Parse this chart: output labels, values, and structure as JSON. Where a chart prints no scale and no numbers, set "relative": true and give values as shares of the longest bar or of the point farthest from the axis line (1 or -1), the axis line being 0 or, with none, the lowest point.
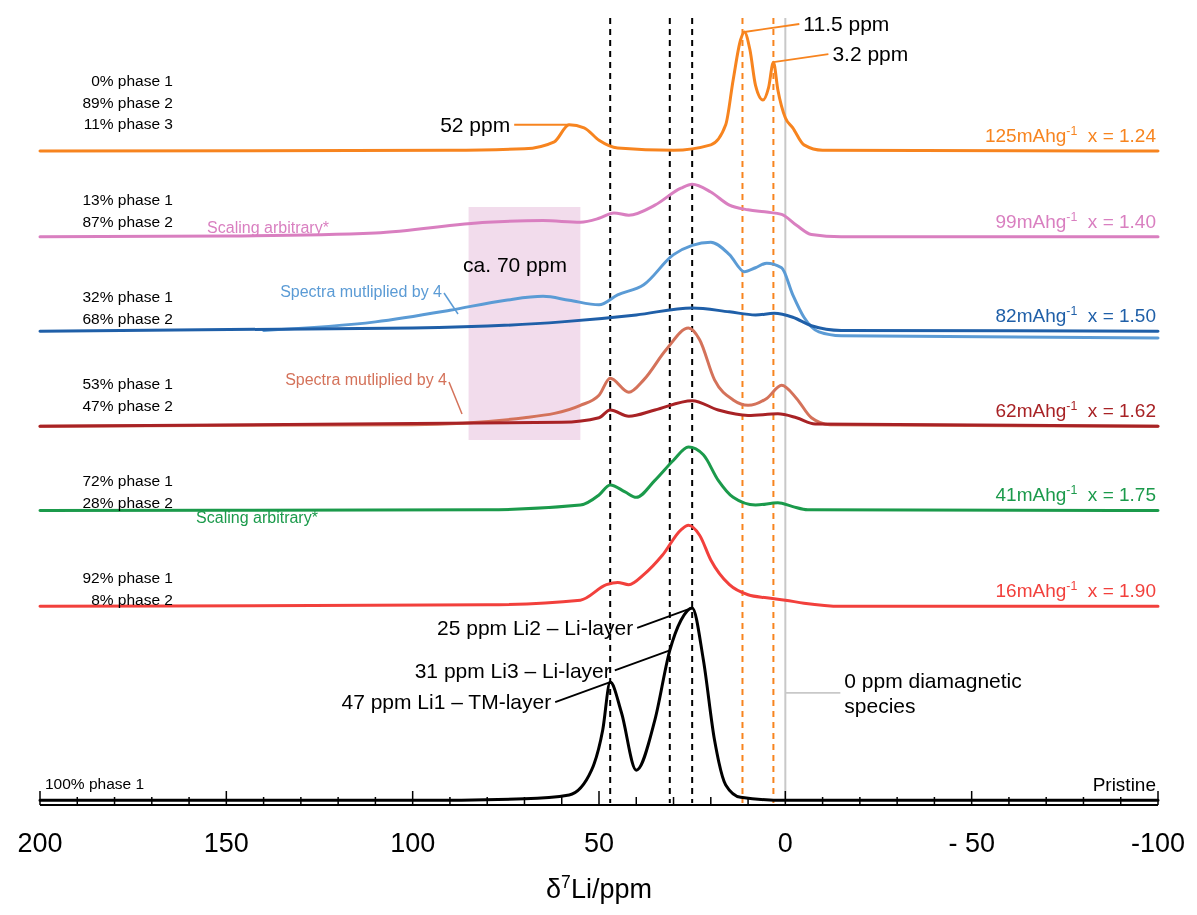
{
  "chart_data": {
    "type": "line",
    "relative": true,
    "xlim": [
      200,
      -100
    ],
    "xticks": [
      200,
      {
        "value": 190,
        "label": null
      },
      {
        "value": 180,
        "label": null
      },
      {
        "value": 170,
        "label": null
      },
      {
        "value": 160,
        "label": null
      },
      150,
      {
        "value": 140,
        "label": null
      },
      {
        "value": 130,
        "label": null
      },
      {
        "value": 120,
        "label": null
      },
      {
        "value": 110,
        "label": null
      },
      100,
      {
        "value": 90,
        "label": null
      },
      {
        "value": 80,
        "label": null
      },
      {
        "value": 70,
        "label": null
      },
      {
        "value": 60,
        "label": null
      },
      50,
      {
        "value": 40,
        "label": null
      },
      {
        "value": 30,
        "label": null
      },
      {
        "value": 20,
        "label": null
      },
      {
        "value": 10,
        "label": null
      },
      0,
      {
        "value": -10,
        "label": null
      },
      {
        "value": -20,
        "label": null
      },
      {
        "value": -30,
        "label": null
      },
      {
        "value": -40,
        "label": null
      },
      {
        "value": -50,
        "label": "- 50"
      },
      {
        "value": -60,
        "label": null
      },
      {
        "value": -70,
        "label": null
      },
      {
        "value": -80,
        "label": null
      },
      {
        "value": -90,
        "label": null
      },
      -100
    ],
    "xlabel": "δ$^{7}$Li/ppm",
    "tick_labels": "x",
    "series": [
      {
        "name": "125mAhg$^{-1}$  x = 1.24",
        "color": "#f7841f",
        "x": [
          200,
          90,
          70,
          62,
          58,
          54,
          50,
          45,
          30,
          20,
          16,
          14,
          12,
          11,
          9.5,
          8,
          6,
          4.5,
          3.2,
          2,
          0,
          -2,
          -5,
          -10,
          -100
        ],
        "values": [
          0.846,
          0.847,
          0.849,
          0.858,
          0.88,
          0.876,
          0.86,
          0.85,
          0.847,
          0.854,
          0.88,
          0.938,
          0.99,
          1.0,
          0.977,
          0.931,
          0.912,
          0.928,
          0.961,
          0.925,
          0.889,
          0.876,
          0.854,
          0.847,
          0.846
        ]
      },
      {
        "name": "99mAhg$^{-1}$  x = 1.40",
        "color": "#d97fc0",
        "x": [
          200,
          150,
          110,
          80,
          65,
          55,
          50,
          46,
          42,
          35,
          28,
          25,
          20,
          15,
          10,
          5,
          1,
          -3,
          -7,
          -15,
          -100
        ],
        "values": [
          0.735,
          0.736,
          0.74,
          0.754,
          0.756,
          0.754,
          0.759,
          0.766,
          0.763,
          0.776,
          0.798,
          0.803,
          0.793,
          0.776,
          0.77,
          0.767,
          0.764,
          0.75,
          0.738,
          0.735,
          0.735
        ]
      },
      {
        "color": "#5b9bd5",
        "x": [
          140,
          110,
          90,
          75,
          65,
          58,
          50,
          45,
          38,
          30,
          25,
          20,
          15,
          11,
          8,
          5,
          1,
          -2,
          -5,
          -9,
          -15,
          -100
        ],
        "values": [
          0.614,
          0.625,
          0.64,
          0.653,
          0.658,
          0.653,
          0.647,
          0.66,
          0.673,
          0.712,
          0.724,
          0.728,
          0.712,
          0.69,
          0.695,
          0.701,
          0.695,
          0.66,
          0.631,
          0.612,
          0.607,
          0.604
        ]
      },
      {
        "name": "82mAhg$^{-1}$  x = 1.50",
        "color": "#1f5fa8",
        "x": [
          200,
          100,
          60,
          40,
          25,
          15,
          8,
          3,
          -2,
          -7,
          -15,
          -100
        ],
        "values": [
          0.613,
          0.617,
          0.625,
          0.634,
          0.643,
          0.638,
          0.634,
          0.636,
          0.631,
          0.62,
          0.614,
          0.613
        ]
      },
      {
        "color": "#d4725a",
        "x": [
          200,
          100,
          70,
          55,
          50,
          47,
          42,
          38,
          32,
          26,
          23,
          19,
          14,
          10,
          5,
          1,
          -3,
          -7,
          -12,
          -100
        ],
        "values": [
          0.49,
          0.492,
          0.501,
          0.517,
          0.53,
          0.552,
          0.534,
          0.55,
          0.589,
          0.617,
          0.602,
          0.55,
          0.524,
          0.517,
          0.526,
          0.543,
          0.526,
          0.501,
          0.492,
          0.49
        ]
      },
      {
        "name": "62mAhg$^{-1}$  x = 1.62",
        "color": "#a82225",
        "x": [
          200,
          60,
          50,
          47,
          42,
          35,
          25,
          18,
          10,
          2,
          -3,
          -8,
          -100
        ],
        "values": [
          0.49,
          0.495,
          0.501,
          0.511,
          0.503,
          0.511,
          0.523,
          0.511,
          0.504,
          0.506,
          0.501,
          0.493,
          0.49
        ]
      },
      {
        "name": "41mAhg$^{-1}$  x = 1.75",
        "color": "#1b9a4b",
        "x": [
          200,
          80,
          55,
          50,
          47,
          43,
          40,
          35,
          30,
          26,
          22,
          18,
          14,
          8,
          2,
          -2,
          -6,
          -100
        ],
        "values": [
          0.381,
          0.382,
          0.388,
          0.401,
          0.414,
          0.405,
          0.398,
          0.42,
          0.446,
          0.463,
          0.453,
          0.42,
          0.398,
          0.388,
          0.391,
          0.386,
          0.382,
          0.381
        ]
      },
      {
        "name": "16mAhg$^{-1}$  x = 1.90",
        "color": "#f2403c",
        "x": [
          200,
          80,
          55,
          48,
          45,
          42,
          38,
          33,
          28,
          26,
          23,
          20,
          15,
          10,
          5,
          0,
          -5,
          -15,
          -100
        ],
        "values": [
          0.257,
          0.259,
          0.265,
          0.285,
          0.288,
          0.285,
          0.298,
          0.323,
          0.356,
          0.362,
          0.349,
          0.317,
          0.285,
          0.272,
          0.268,
          0.265,
          0.261,
          0.257,
          0.257
        ]
      },
      {
        "name": "Pristine",
        "color": "#000000",
        "x": [
          200,
          100,
          70,
          58,
          52,
          49,
          47,
          44,
          40,
          35,
          31,
          28,
          25,
          22,
          19,
          16,
          12,
          0,
          -100
        ],
        "values": [
          0.006,
          0.006,
          0.008,
          0.013,
          0.045,
          0.097,
          0.159,
          0.12,
          0.045,
          0.11,
          0.2,
          0.239,
          0.255,
          0.188,
          0.084,
          0.026,
          0.01,
          0.006,
          0.006
        ]
      }
    ],
    "ref_lines": [
      {
        "axis": "x",
        "value": 47,
        "color": "#000000",
        "line_style": "dashed"
      },
      {
        "axis": "x",
        "value": 31,
        "color": "#000000",
        "line_style": "dashed"
      },
      {
        "axis": "x",
        "value": 25,
        "color": "#000000",
        "line_style": "dashed"
      },
      {
        "axis": "x",
        "value": 11.5,
        "color": "#f7841f",
        "line_style": "dashed"
      },
      {
        "axis": "x",
        "value": 3.2,
        "color": "#f7841f",
        "line_style": "dashed"
      },
      {
        "axis": "x",
        "value": 0,
        "color": "#c8c8c8",
        "line_style": "solid"
      }
    ],
    "bands": [
      {
        "axis": "x",
        "from": 85,
        "to": 55,
        "color": "#f2dcec"
      }
    ],
    "annotations": [
      {
        "text": "11.5 ppm",
        "x": 11,
        "y": 1.0
      },
      {
        "text": "3.2 ppm",
        "x": 3.2,
        "y": 0.961
      },
      {
        "text": "52 ppm",
        "x": 58,
        "y": 0.88
      },
      {
        "text": "25 ppm Li2 – Li-layer",
        "x": 25,
        "y": 0.255
      },
      {
        "text": "31 ppm Li3 – Li-layer",
        "x": 31,
        "y": 0.2
      },
      {
        "text": "47 ppm Li1 – TM-layer",
        "x": 47,
        "y": 0.159
      },
      {
        "text": "0 ppm diamagnetic\nspecies",
        "x": 0,
        "y": 0.145
      },
      "Spectra mutliplied by 4",
      "Spectra mutliplied by 4",
      "ca. 70 ppm",
      "Scaling arbitrary*",
      "Scaling arbitrary*",
      "0% phase 1\n89% phase 2\n11% phase 3",
      "13% phase 1\n87% phase 2",
      "32% phase 1\n68% phase 2",
      "53% phase 1\n47% phase 2",
      "72% phase 1\n28% phase 2",
      "92% phase 1\n8% phase 2",
      "100% phase 1"
    ]
  }
}
